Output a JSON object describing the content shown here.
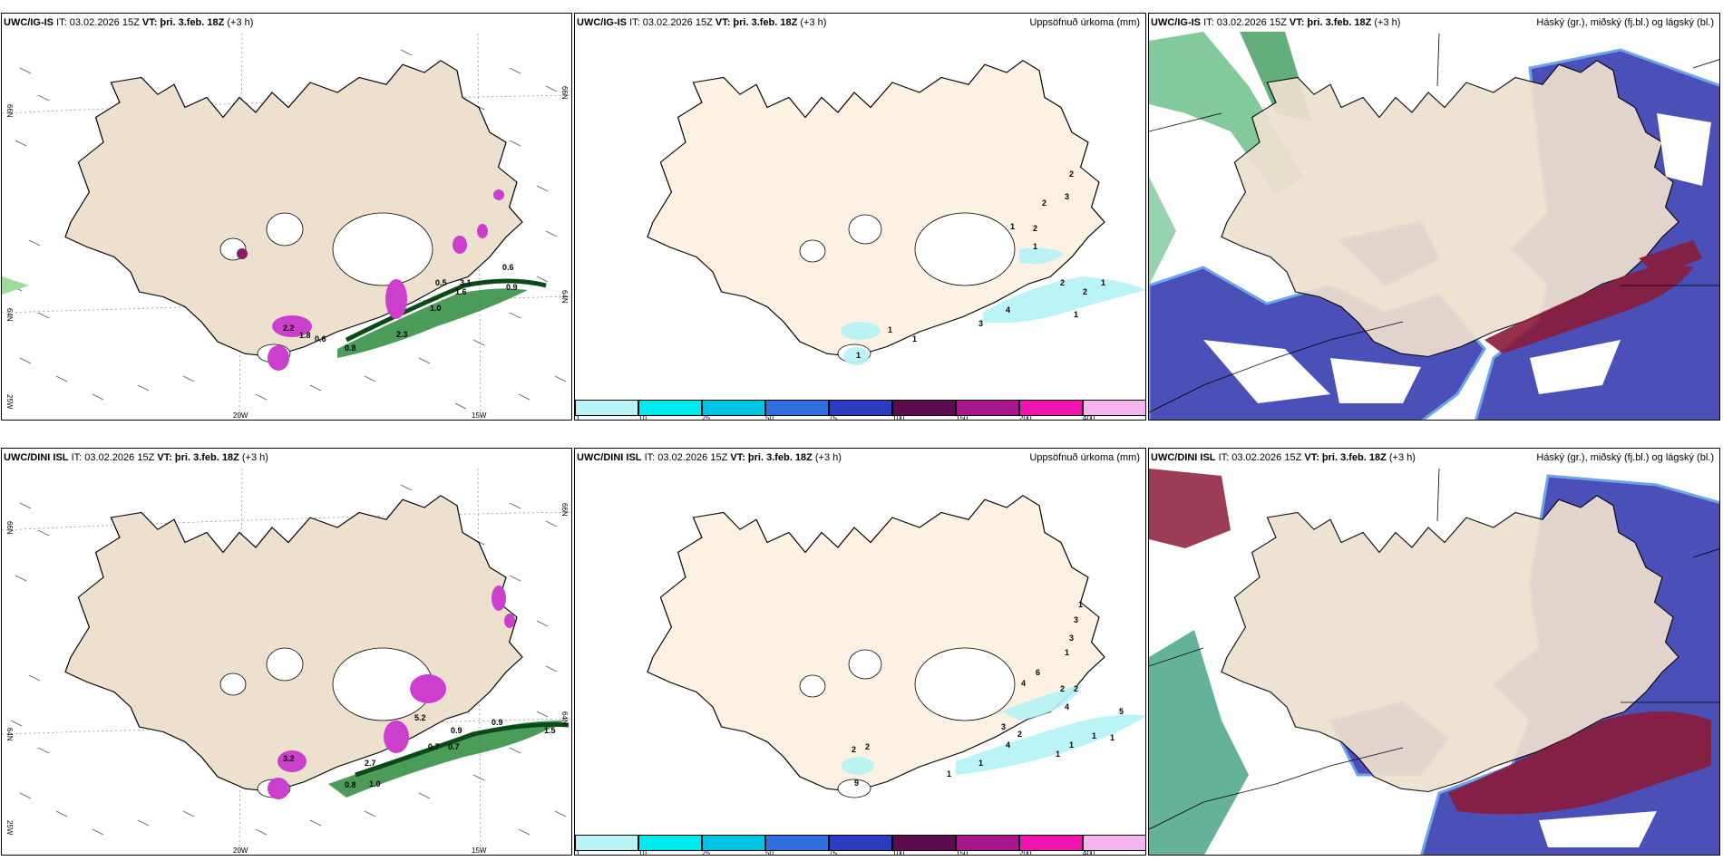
{
  "colors": {
    "land": "#ede0cf",
    "land_precip": "#fdf1e3",
    "precip_green": "#2c8a3c",
    "precip_magenta": "#cc3fcc",
    "cloud_high": "#4a50b8",
    "cloud_high_edge": "#6fa5e8",
    "cloud_mid_green": "#6cc08a",
    "cloud_low_red": "#8b1a3a",
    "precip_cyan": "#b4f3f6"
  },
  "panels": {
    "p1": {
      "model": "UWC/IG-IS",
      "run": "IT: 03.02.2026 15Z",
      "vt": "VT: þri. 3.feb. 18Z",
      "lead": "(+3 h)",
      "right": ""
    },
    "p2": {
      "model": "UWC/IG-IS",
      "run": "IT: 03.02.2026 15Z",
      "vt": "VT: þri. 3.feb. 18Z",
      "lead": "(+3 h)",
      "right": "Uppsöfnuð úrkoma (mm)"
    },
    "p3": {
      "model": "UWC/IG-IS",
      "run": "IT: 03.02.2026 15Z",
      "vt": "VT: þri. 3.feb. 18Z",
      "lead": "(+3 h)",
      "right": "Háský (gr.), miðský (fj.bl.) og lágský (bl.)"
    },
    "p4": {
      "model": "UWC/DINI ISL",
      "run": "IT: 03.02.2026 15Z",
      "vt": "VT: þri. 3.feb. 18Z",
      "lead": "(+3 h)",
      "right": ""
    },
    "p5": {
      "model": "UWC/DINI ISL",
      "run": "IT: 03.02.2026 15Z",
      "vt": "VT: þri. 3.feb. 18Z",
      "lead": "(+3 h)",
      "right": "Uppsöfnuð úrkoma (mm)"
    },
    "p6": {
      "model": "UWC/DINI ISL",
      "run": "IT: 03.02.2026 15Z",
      "vt": "VT: þri. 3.feb. 18Z",
      "lead": "(+3 h)",
      "right": "Háský (gr.), miðský (fj.bl.) og lágský (bl.)"
    }
  },
  "axis_labels": {
    "lat66": "66N",
    "lat64": "64N",
    "lon20": "20W",
    "lon15": "15W",
    "lon25": "25W"
  },
  "colorbar": {
    "labels": [
      "1",
      "10",
      "25",
      "50",
      "75",
      "100",
      "150",
      "200",
      "400"
    ],
    "colors": [
      "#b8f4f7",
      "#00e9ee",
      "#00c3e6",
      "#2f6fe0",
      "#2c3bc0",
      "#5d0c50",
      "#a8168e",
      "#ee14b0",
      "#f6b4ee"
    ]
  },
  "precip_labels_top": [
    "0.5",
    "0.6",
    "0.9",
    "1.0",
    "2.3",
    "0.8",
    "1.6",
    "0.6",
    "2.2",
    "1.8",
    "3.1"
  ],
  "precip_labels_bottom": [
    "1.5",
    "0.9",
    "0.7",
    "0.7",
    "1.0",
    "0.8",
    "0.9",
    "2.7",
    "3.2",
    "5.2"
  ],
  "accum_labels_top": [
    "2",
    "2",
    "3",
    "1",
    "2",
    "2",
    "2",
    "1",
    "1",
    "3",
    "4",
    "1",
    "1",
    "1",
    "1"
  ],
  "accum_labels_bottom": [
    "1",
    "3",
    "3",
    "1",
    "6",
    "4",
    "2",
    "2",
    "4",
    "5",
    "3",
    "2",
    "4",
    "1",
    "1",
    "1",
    "1",
    "2",
    "2",
    "1",
    "9",
    "1"
  ]
}
